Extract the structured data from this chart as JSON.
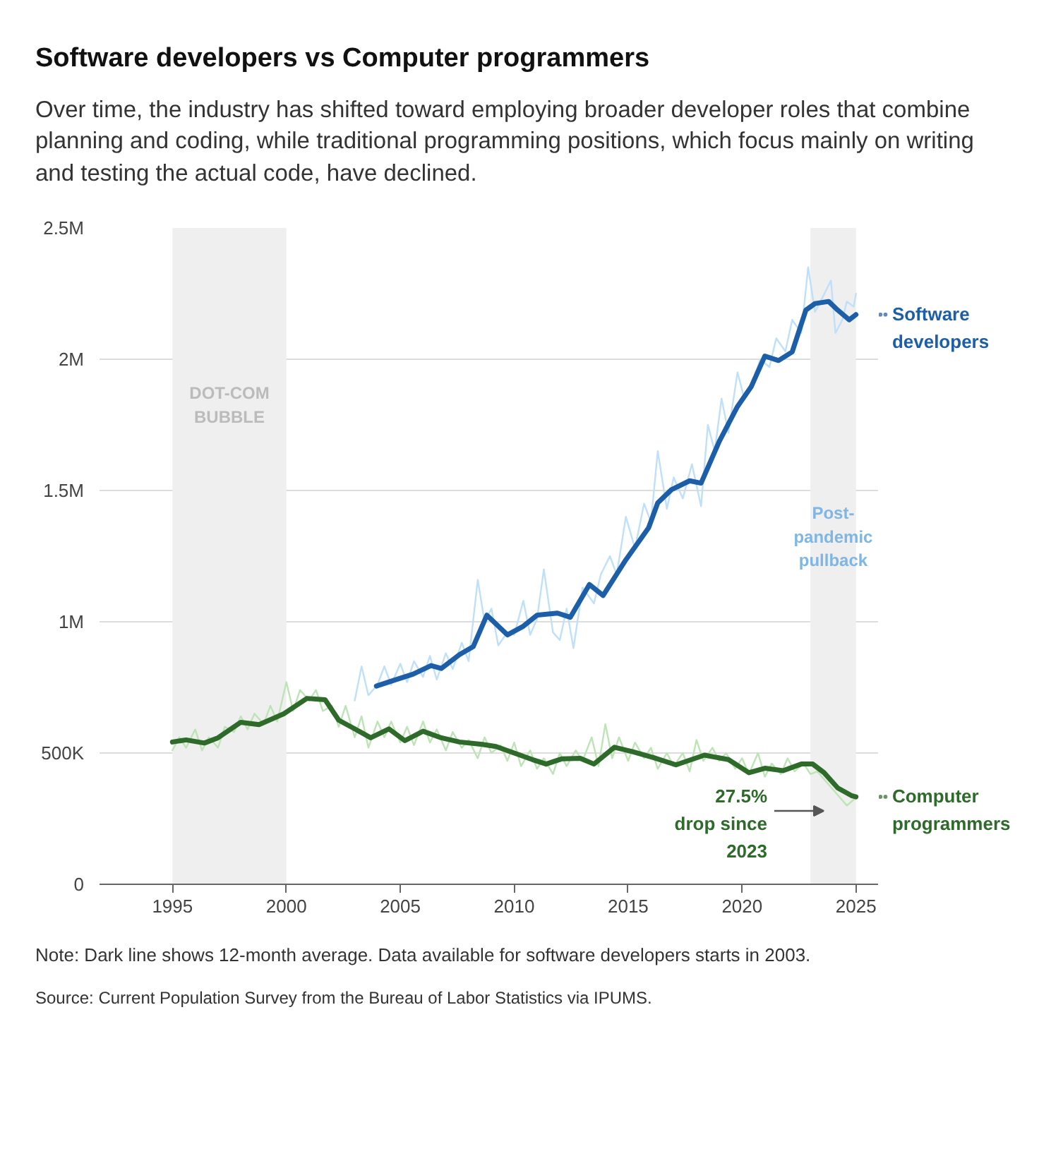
{
  "chart_data": {
    "type": "line",
    "title": "Software developers vs Computer programmers",
    "subtitle": "Over time, the industry has shifted toward employing broader developer roles that combine planning and coding, while traditional programming positions, which focus mainly on writing and testing the actual code, have declined.",
    "annotations": [
      "27.5% drop since 2023",
      "Note: Dark line shows 12-month average. Data available for software developers starts in 2003.",
      "Source: Current Population Survey from the Bureau of Labor Statistics via IPUMS."
    ],
    "xlim": [
      1991.8,
      2026
    ],
    "xticks": [
      1995,
      2000,
      2005,
      2010,
      2015,
      2020,
      2025
    ],
    "ylim": [
      0,
      2500000
    ],
    "yticks": [
      {
        "value": 0,
        "label": "0"
      },
      {
        "value": 500000,
        "label": "500K"
      },
      {
        "value": 1000000,
        "label": "1M"
      },
      {
        "value": 1500000,
        "label": "1.5M"
      },
      {
        "value": 2000000,
        "label": "2M"
      },
      {
        "value": 2500000,
        "label": "2.5M"
      }
    ],
    "grid": "y",
    "legend": "right",
    "bands": [
      {
        "axis": "x",
        "from": 1995,
        "to": 2000,
        "label": "DOT-COM\nBUBBLE",
        "color": "#efefef"
      },
      {
        "axis": "x",
        "from": 2023,
        "to": 2025,
        "label": "Post-\npandemic\npullback",
        "color": "#efefef"
      }
    ],
    "series": [
      {
        "color": "#bfe0fa",
        "x": [
          2003.0,
          2003.3,
          2003.6,
          2004.0,
          2004.3,
          2004.6,
          2005.0,
          2005.3,
          2005.6,
          2006.0,
          2006.3,
          2006.6,
          2007.0,
          2007.3,
          2007.7,
          2008.0,
          2008.4,
          2008.7,
          2009.0,
          2009.3,
          2009.7,
          2010.0,
          2010.4,
          2010.7,
          2011.0,
          2011.3,
          2011.7,
          2012.0,
          2012.3,
          2012.6,
          2013.0,
          2013.5,
          2013.8,
          2014.2,
          2014.5,
          2014.9,
          2015.3,
          2015.7,
          2016.0,
          2016.3,
          2016.7,
          2017.0,
          2017.4,
          2017.8,
          2018.2,
          2018.5,
          2018.8,
          2019.1,
          2019.4,
          2019.8,
          2020.1,
          2020.4,
          2020.8,
          2021.2,
          2021.5,
          2021.9,
          2022.2,
          2022.6,
          2022.9,
          2023.2,
          2023.5,
          2023.9,
          2024.1,
          2024.4,
          2024.6,
          2024.9,
          2025.0
        ],
        "values": [
          700000,
          830000,
          720000,
          760000,
          830000,
          760000,
          840000,
          770000,
          850000,
          790000,
          870000,
          780000,
          880000,
          820000,
          920000,
          850000,
          1160000,
          1000000,
          1050000,
          910000,
          960000,
          950000,
          1080000,
          950000,
          1010000,
          1200000,
          960000,
          930000,
          1050000,
          900000,
          1130000,
          1070000,
          1180000,
          1250000,
          1180000,
          1400000,
          1280000,
          1450000,
          1380000,
          1650000,
          1430000,
          1550000,
          1470000,
          1600000,
          1440000,
          1750000,
          1650000,
          1850000,
          1720000,
          1950000,
          1850000,
          1900000,
          2000000,
          1970000,
          2080000,
          2030000,
          2150000,
          2100000,
          2350000,
          2180000,
          2230000,
          2300000,
          2100000,
          2150000,
          2220000,
          2200000,
          2250000
        ]
      },
      {
        "color": "#bde4b4",
        "x": [
          1995.0,
          1995.3,
          1995.6,
          1996.0,
          1996.3,
          1996.6,
          1997.0,
          1997.3,
          1997.7,
          1998.0,
          1998.3,
          1998.6,
          1999.0,
          1999.3,
          1999.6,
          2000.0,
          2000.3,
          2000.6,
          2001.0,
          2001.3,
          2001.6,
          2002.0,
          2002.3,
          2002.6,
          2003.0,
          2003.3,
          2003.6,
          2004.0,
          2004.3,
          2004.6,
          2005.0,
          2005.3,
          2005.6,
          2006.0,
          2006.3,
          2006.6,
          2007.0,
          2007.3,
          2007.7,
          2008.0,
          2008.4,
          2008.7,
          2009.0,
          2009.4,
          2009.7,
          2010.0,
          2010.3,
          2010.7,
          2011.0,
          2011.3,
          2011.7,
          2012.0,
          2012.3,
          2012.7,
          2013.0,
          2013.4,
          2013.7,
          2014.0,
          2014.3,
          2014.6,
          2015.0,
          2015.3,
          2015.7,
          2016.0,
          2016.3,
          2016.7,
          2017.0,
          2017.4,
          2017.7,
          2018.0,
          2018.3,
          2018.7,
          2019.0,
          2019.3,
          2019.7,
          2020.0,
          2020.3,
          2020.7,
          2021.0,
          2021.3,
          2021.7,
          2022.0,
          2022.3,
          2022.7,
          2023.0,
          2023.3,
          2023.6,
          2024.0,
          2024.3,
          2024.6,
          2025.0
        ],
        "values": [
          510000,
          560000,
          520000,
          590000,
          510000,
          560000,
          520000,
          600000,
          580000,
          640000,
          590000,
          650000,
          610000,
          680000,
          620000,
          770000,
          660000,
          740000,
          700000,
          740000,
          660000,
          680000,
          600000,
          680000,
          560000,
          640000,
          520000,
          620000,
          560000,
          620000,
          540000,
          600000,
          530000,
          620000,
          540000,
          590000,
          510000,
          580000,
          520000,
          550000,
          480000,
          560000,
          500000,
          530000,
          470000,
          540000,
          450000,
          510000,
          440000,
          480000,
          420000,
          500000,
          450000,
          510000,
          470000,
          560000,
          450000,
          610000,
          480000,
          560000,
          470000,
          540000,
          480000,
          520000,
          440000,
          500000,
          450000,
          500000,
          430000,
          550000,
          470000,
          520000,
          470000,
          500000,
          440000,
          480000,
          420000,
          500000,
          410000,
          460000,
          420000,
          480000,
          430000,
          460000,
          420000,
          430000,
          400000,
          360000,
          330000,
          300000,
          330000
        ]
      },
      {
        "name": "Software developers",
        "color": "#1c5ea8",
        "x": [
          2003.95,
          2004.75,
          2005.55,
          2006.35,
          2006.8,
          2007.6,
          2008.2,
          2008.8,
          2009.7,
          2010.4,
          2011.0,
          2011.9,
          2012.46,
          2013.3,
          2013.9,
          2014.9,
          2015.9,
          2016.3,
          2016.9,
          2017.7,
          2018.2,
          2019.0,
          2019.8,
          2020.4,
          2021.0,
          2021.6,
          2022.2,
          2022.8,
          2023.2,
          2023.8,
          2024.2,
          2024.7,
          2025.0
        ],
        "values": [
          755000,
          778000,
          800000,
          833000,
          822000,
          875000,
          905000,
          1025000,
          950000,
          983000,
          1025000,
          1033000,
          1017000,
          1142000,
          1100000,
          1236000,
          1358000,
          1453000,
          1503000,
          1537000,
          1528000,
          1687000,
          1820000,
          1895000,
          2012000,
          1995000,
          2028000,
          2187000,
          2212000,
          2220000,
          2187000,
          2150000,
          2170000
        ]
      },
      {
        "name": "Computer programmers",
        "color": "#2e6b2a",
        "x": [
          1995.0,
          1995.6,
          1996.4,
          1997.0,
          1998.0,
          1998.8,
          1999.9,
          2000.9,
          2001.7,
          2002.3,
          2003.0,
          2003.7,
          2004.5,
          2005.2,
          2006.0,
          2006.8,
          2007.6,
          2008.6,
          2009.2,
          2010.0,
          2010.8,
          2011.4,
          2012.1,
          2012.9,
          2013.5,
          2014.4,
          2015.2,
          2016.1,
          2017.1,
          2018.35,
          2019.4,
          2020.3,
          2021.0,
          2021.8,
          2022.6,
          2023.1,
          2023.6,
          2024.2,
          2024.8,
          2025.0
        ],
        "values": [
          542000,
          550000,
          538000,
          558000,
          617000,
          608000,
          650000,
          708000,
          703000,
          625000,
          592000,
          558000,
          592000,
          547000,
          583000,
          558000,
          542000,
          533000,
          525000,
          500000,
          475000,
          458000,
          478000,
          480000,
          458000,
          522000,
          505000,
          483000,
          455000,
          492000,
          475000,
          425000,
          442000,
          433000,
          458000,
          458000,
          425000,
          367000,
          338000,
          333000
        ]
      }
    ]
  }
}
